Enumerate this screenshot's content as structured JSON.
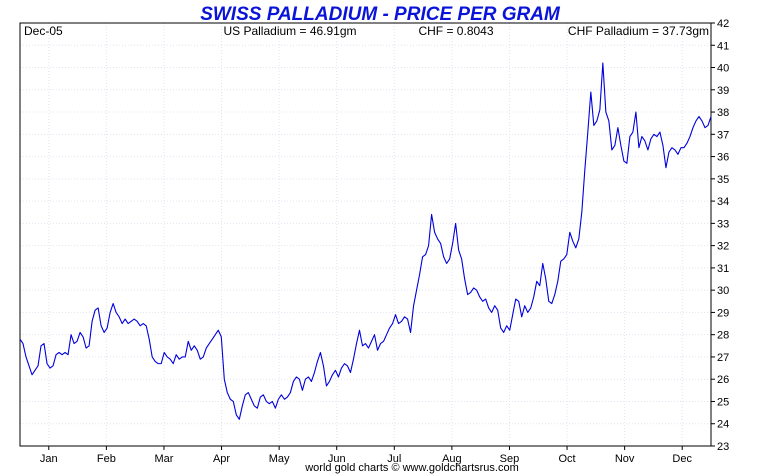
{
  "chart_data": {
    "type": "line",
    "title": "SWISS PALLADIUM - PRICE PER GRAM",
    "header": {
      "date": "Dec-05",
      "us_price": "US Palladium = 46.91gm",
      "fx": "CHF = 0.8043",
      "chf_price": "CHF Palladium = 37.73gm"
    },
    "footer": "world gold charts © www.goldchartsrus.com",
    "x_ticks": [
      "Jan",
      "Feb",
      "Mar",
      "Apr",
      "May",
      "Jun",
      "Jul",
      "Aug",
      "Sep",
      "Oct",
      "Nov",
      "Dec"
    ],
    "ylim": [
      23,
      42
    ],
    "y_ticks": [
      23,
      24,
      25,
      26,
      27,
      28,
      29,
      30,
      31,
      32,
      33,
      34,
      35,
      36,
      37,
      38,
      39,
      40,
      41,
      42
    ],
    "grid": true,
    "series": [
      {
        "color": "#0000dd",
        "values": [
          27.8,
          27.6,
          27.0,
          26.6,
          26.2,
          26.4,
          26.6,
          27.5,
          27.6,
          26.7,
          26.5,
          26.6,
          27.1,
          27.2,
          27.1,
          27.2,
          27.1,
          28.0,
          27.6,
          27.7,
          28.1,
          27.9,
          27.4,
          27.5,
          28.6,
          29.1,
          29.2,
          28.4,
          28.1,
          28.3,
          29.0,
          29.4,
          29.0,
          28.8,
          28.5,
          28.7,
          28.5,
          28.6,
          28.7,
          28.6,
          28.4,
          28.5,
          28.4,
          27.8,
          27.0,
          26.8,
          26.7,
          26.7,
          27.2,
          27.0,
          26.9,
          26.7,
          27.1,
          26.9,
          27.0,
          27.0,
          27.7,
          27.3,
          27.5,
          27.3,
          26.9,
          27.0,
          27.4,
          27.6,
          27.8,
          28.0,
          28.2,
          27.9,
          26.0,
          25.4,
          25.1,
          25.0,
          24.4,
          24.2,
          24.8,
          25.3,
          25.4,
          25.1,
          24.8,
          24.7,
          25.2,
          25.3,
          25.0,
          24.9,
          25.0,
          24.7,
          25.1,
          25.3,
          25.1,
          25.2,
          25.4,
          25.9,
          26.1,
          26.0,
          25.5,
          26.0,
          26.1,
          25.9,
          26.3,
          26.8,
          27.2,
          26.6,
          25.7,
          25.9,
          26.2,
          26.4,
          26.1,
          26.5,
          26.7,
          26.6,
          26.3,
          26.9,
          27.6,
          28.2,
          27.5,
          27.6,
          27.4,
          27.7,
          28.0,
          27.3,
          27.6,
          27.7,
          28.0,
          28.3,
          28.5,
          28.9,
          28.5,
          28.6,
          28.8,
          28.7,
          28.1,
          29.3,
          30.0,
          30.7,
          31.5,
          31.6,
          32.0,
          33.4,
          32.6,
          32.3,
          32.1,
          31.5,
          31.2,
          31.4,
          32.1,
          33.0,
          31.8,
          31.4,
          30.5,
          29.8,
          29.9,
          30.1,
          30.0,
          29.7,
          29.5,
          29.6,
          29.2,
          29.0,
          29.3,
          29.1,
          28.3,
          28.1,
          28.4,
          28.2,
          28.9,
          29.6,
          29.5,
          28.8,
          29.3,
          29.0,
          29.2,
          29.7,
          30.4,
          30.2,
          31.2,
          30.5,
          29.5,
          29.4,
          29.8,
          30.4,
          31.3,
          31.4,
          31.6,
          32.6,
          32.2,
          31.9,
          32.3,
          33.5,
          35.4,
          37.1,
          38.9,
          37.4,
          37.6,
          38.1,
          40.2,
          38.0,
          37.6,
          36.3,
          36.5,
          37.3,
          36.5,
          35.8,
          35.7,
          36.9,
          37.1,
          38.0,
          36.4,
          36.9,
          36.7,
          36.3,
          36.8,
          37.0,
          36.9,
          37.1,
          36.5,
          35.5,
          36.2,
          36.4,
          36.3,
          36.1,
          36.4,
          36.4,
          36.6,
          36.9,
          37.3,
          37.6,
          37.8,
          37.6,
          37.3,
          37.4,
          37.8
        ]
      }
    ]
  }
}
